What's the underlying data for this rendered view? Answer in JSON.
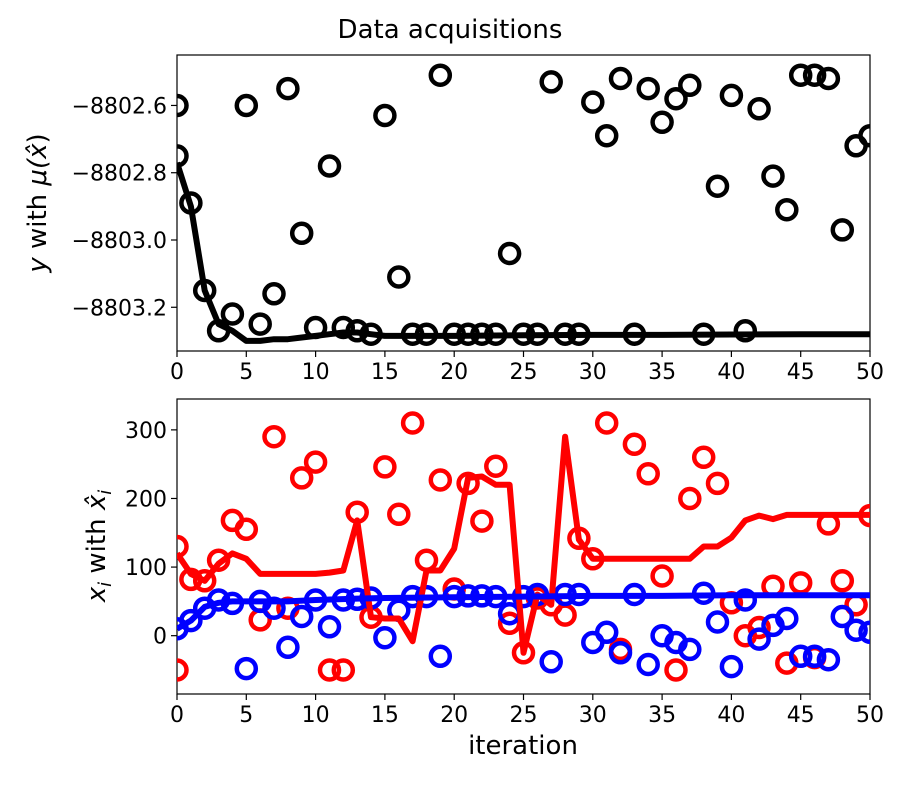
{
  "chart_data": [
    {
      "type": "scatter",
      "title": "Data acquisitions",
      "xlabel": "",
      "ylabel_pre": "y",
      "ylabel_mid": " with ",
      "ylabel_mu": "μ(",
      "ylabel_hat": "x̂",
      "ylabel_post": ")",
      "xlim": [
        0,
        50
      ],
      "ylim": [
        -8803.33,
        -8802.45
      ],
      "xticks": [
        0,
        5,
        10,
        15,
        20,
        25,
        30,
        35,
        40,
        45,
        50
      ],
      "yticks": [
        -8803.2,
        -8803.0,
        -8802.8,
        -8802.6
      ],
      "ytick_labels": [
        "−8803.2",
        "−8803.0",
        "−8802.8",
        "−8802.6"
      ],
      "grid": false,
      "series": [
        {
          "style": "scatter",
          "color": "#000000",
          "points": [
            [
              0,
              -8802.6
            ],
            [
              0,
              -8802.75
            ],
            [
              1,
              -8802.89
            ],
            [
              2,
              -8803.15
            ],
            [
              3,
              -8803.27
            ],
            [
              4,
              -8803.22
            ],
            [
              5,
              -8802.6
            ],
            [
              6,
              -8803.25
            ],
            [
              7,
              -8803.16
            ],
            [
              8,
              -8802.55
            ],
            [
              9,
              -8802.98
            ],
            [
              10,
              -8803.26
            ],
            [
              11,
              -8802.78
            ],
            [
              12,
              -8803.26
            ],
            [
              13,
              -8803.27
            ],
            [
              14,
              -8803.28
            ],
            [
              15,
              -8802.63
            ],
            [
              16,
              -8803.11
            ],
            [
              17,
              -8803.28
            ],
            [
              18,
              -8803.28
            ],
            [
              19,
              -8802.51
            ],
            [
              20,
              -8803.28
            ],
            [
              21,
              -8803.28
            ],
            [
              22,
              -8803.28
            ],
            [
              23,
              -8803.28
            ],
            [
              24,
              -8803.04
            ],
            [
              25,
              -8803.28
            ],
            [
              26,
              -8803.28
            ],
            [
              27,
              -8802.53
            ],
            [
              28,
              -8803.28
            ],
            [
              29,
              -8803.28
            ],
            [
              30,
              -8802.59
            ],
            [
              31,
              -8802.69
            ],
            [
              32,
              -8802.52
            ],
            [
              33,
              -8803.28
            ],
            [
              34,
              -8802.55
            ],
            [
              35,
              -8802.65
            ],
            [
              36,
              -8802.58
            ],
            [
              37,
              -8802.54
            ],
            [
              38,
              -8803.28
            ],
            [
              39,
              -8802.84
            ],
            [
              40,
              -8802.57
            ],
            [
              41,
              -8803.27
            ],
            [
              42,
              -8802.61
            ],
            [
              43,
              -8802.81
            ],
            [
              44,
              -8802.91
            ],
            [
              45,
              -8802.51
            ],
            [
              46,
              -8802.51
            ],
            [
              47,
              -8802.52
            ],
            [
              48,
              -8802.97
            ],
            [
              49,
              -8802.72
            ],
            [
              50,
              -8802.69
            ]
          ]
        },
        {
          "style": "line",
          "color": "#000000",
          "points": [
            [
              0,
              -8802.77
            ],
            [
              1,
              -8802.9
            ],
            [
              2,
              -8803.15
            ],
            [
              3,
              -8803.25
            ],
            [
              4,
              -8803.27
            ],
            [
              5,
              -8803.3
            ],
            [
              6,
              -8803.3
            ],
            [
              7,
              -8803.295
            ],
            [
              8,
              -8803.295
            ],
            [
              9,
              -8803.29
            ],
            [
              10,
              -8803.285
            ],
            [
              11,
              -8803.28
            ],
            [
              12,
              -8803.275
            ],
            [
              13,
              -8803.275
            ],
            [
              14,
              -8803.28
            ],
            [
              15,
              -8803.285
            ],
            [
              20,
              -8803.285
            ],
            [
              25,
              -8803.283
            ],
            [
              30,
              -8803.282
            ],
            [
              35,
              -8803.282
            ],
            [
              40,
              -8803.281
            ],
            [
              45,
              -8803.28
            ],
            [
              50,
              -8803.28
            ]
          ]
        }
      ]
    },
    {
      "type": "scatter",
      "xlabel": "iteration",
      "ylabel_x": "x",
      "ylabel_xsub": "i",
      "ylabel_mid": " with ",
      "ylabel_xhat": "x̂",
      "ylabel_xhatsub": "i",
      "xlim": [
        0,
        50
      ],
      "ylim": [
        -85,
        345
      ],
      "xticks": [
        0,
        5,
        10,
        15,
        20,
        25,
        30,
        35,
        40,
        45,
        50
      ],
      "yticks": [
        0,
        100,
        200,
        300
      ],
      "grid": false,
      "series": [
        {
          "style": "scatter",
          "color": "#ff0000",
          "points": [
            [
              0,
              130
            ],
            [
              0,
              -50
            ],
            [
              1,
              82
            ],
            [
              2,
              80
            ],
            [
              3,
              110
            ],
            [
              4,
              168
            ],
            [
              5,
              155
            ],
            [
              6,
              23
            ],
            [
              7,
              290
            ],
            [
              8,
              40
            ],
            [
              9,
              230
            ],
            [
              10,
              253
            ],
            [
              11,
              -50
            ],
            [
              12,
              -50
            ],
            [
              13,
              180
            ],
            [
              14,
              27
            ],
            [
              15,
              246
            ],
            [
              16,
              177
            ],
            [
              17,
              310
            ],
            [
              18,
              110
            ],
            [
              19,
              227
            ],
            [
              20,
              68
            ],
            [
              21,
              222
            ],
            [
              22,
              167
            ],
            [
              23,
              247
            ],
            [
              24,
              18
            ],
            [
              25,
              -25
            ],
            [
              26,
              55
            ],
            [
              27,
              45
            ],
            [
              28,
              30
            ],
            [
              29,
              142
            ],
            [
              30,
              112
            ],
            [
              31,
              310
            ],
            [
              32,
              -20
            ],
            [
              33,
              279
            ],
            [
              34,
              236
            ],
            [
              35,
              87
            ],
            [
              36,
              -50
            ],
            [
              37,
              200
            ],
            [
              38,
              260
            ],
            [
              39,
              222
            ],
            [
              40,
              48
            ],
            [
              41,
              0
            ],
            [
              42,
              12
            ],
            [
              43,
              72
            ],
            [
              44,
              -40
            ],
            [
              45,
              77
            ],
            [
              46,
              -32
            ],
            [
              47,
              163
            ],
            [
              48,
              80
            ],
            [
              49,
              45
            ],
            [
              50,
              175
            ]
          ]
        },
        {
          "style": "scatter",
          "color": "#0000ff",
          "points": [
            [
              0,
              10
            ],
            [
              1,
              22
            ],
            [
              2,
              40
            ],
            [
              3,
              52
            ],
            [
              4,
              47
            ],
            [
              5,
              -48
            ],
            [
              6,
              50
            ],
            [
              7,
              40
            ],
            [
              8,
              -17
            ],
            [
              9,
              28
            ],
            [
              10,
              52
            ],
            [
              11,
              13
            ],
            [
              12,
              52
            ],
            [
              13,
              53
            ],
            [
              14,
              55
            ],
            [
              15,
              -3
            ],
            [
              16,
              37
            ],
            [
              17,
              57
            ],
            [
              18,
              57
            ],
            [
              19,
              -30
            ],
            [
              20,
              57
            ],
            [
              21,
              58
            ],
            [
              22,
              58
            ],
            [
              23,
              57
            ],
            [
              24,
              32
            ],
            [
              25,
              57
            ],
            [
              26,
              60
            ],
            [
              27,
              -38
            ],
            [
              28,
              60
            ],
            [
              29,
              60
            ],
            [
              30,
              -10
            ],
            [
              31,
              5
            ],
            [
              32,
              -25
            ],
            [
              33,
              60
            ],
            [
              34,
              -42
            ],
            [
              35,
              0
            ],
            [
              36,
              -10
            ],
            [
              37,
              -20
            ],
            [
              38,
              62
            ],
            [
              39,
              20
            ],
            [
              40,
              -45
            ],
            [
              41,
              52
            ],
            [
              42,
              -5
            ],
            [
              43,
              15
            ],
            [
              44,
              25
            ],
            [
              45,
              -30
            ],
            [
              46,
              -30
            ],
            [
              47,
              -35
            ],
            [
              48,
              28
            ],
            [
              49,
              8
            ],
            [
              50,
              5
            ]
          ]
        },
        {
          "style": "line",
          "color": "#ff0000",
          "points": [
            [
              0,
              120
            ],
            [
              1,
              90
            ],
            [
              2,
              80
            ],
            [
              3,
              105
            ],
            [
              4,
              120
            ],
            [
              5,
              112
            ],
            [
              6,
              90
            ],
            [
              7,
              90
            ],
            [
              8,
              90
            ],
            [
              9,
              90
            ],
            [
              10,
              90
            ],
            [
              11,
              92
            ],
            [
              12,
              95
            ],
            [
              13,
              168
            ],
            [
              14,
              27
            ],
            [
              15,
              25
            ],
            [
              16,
              25
            ],
            [
              17,
              -8
            ],
            [
              18,
              95
            ],
            [
              19,
              95
            ],
            [
              20,
              127
            ],
            [
              21,
              230
            ],
            [
              22,
              232
            ],
            [
              23,
              220
            ],
            [
              24,
              220
            ],
            [
              25,
              -25
            ],
            [
              26,
              60
            ],
            [
              27,
              45
            ],
            [
              28,
              290
            ],
            [
              29,
              140
            ],
            [
              30,
              112
            ],
            [
              31,
              112
            ],
            [
              32,
              112
            ],
            [
              33,
              112
            ],
            [
              34,
              112
            ],
            [
              35,
              112
            ],
            [
              36,
              112
            ],
            [
              37,
              112
            ],
            [
              38,
              130
            ],
            [
              39,
              130
            ],
            [
              40,
              143
            ],
            [
              41,
              168
            ],
            [
              42,
              175
            ],
            [
              43,
              170
            ],
            [
              44,
              176
            ],
            [
              45,
              176
            ],
            [
              46,
              176
            ],
            [
              47,
              176
            ],
            [
              48,
              176
            ],
            [
              49,
              176
            ],
            [
              50,
              176
            ]
          ]
        },
        {
          "style": "line",
          "color": "#0000ff",
          "points": [
            [
              0,
              10
            ],
            [
              1,
              22
            ],
            [
              2,
              42
            ],
            [
              3,
              48
            ],
            [
              4,
              50
            ],
            [
              5,
              50
            ],
            [
              8,
              50
            ],
            [
              10,
              52
            ],
            [
              13,
              54
            ],
            [
              15,
              55
            ],
            [
              20,
              56
            ],
            [
              25,
              57
            ],
            [
              30,
              58
            ],
            [
              35,
              58
            ],
            [
              40,
              59
            ],
            [
              45,
              59
            ],
            [
              50,
              59
            ]
          ]
        }
      ]
    }
  ]
}
